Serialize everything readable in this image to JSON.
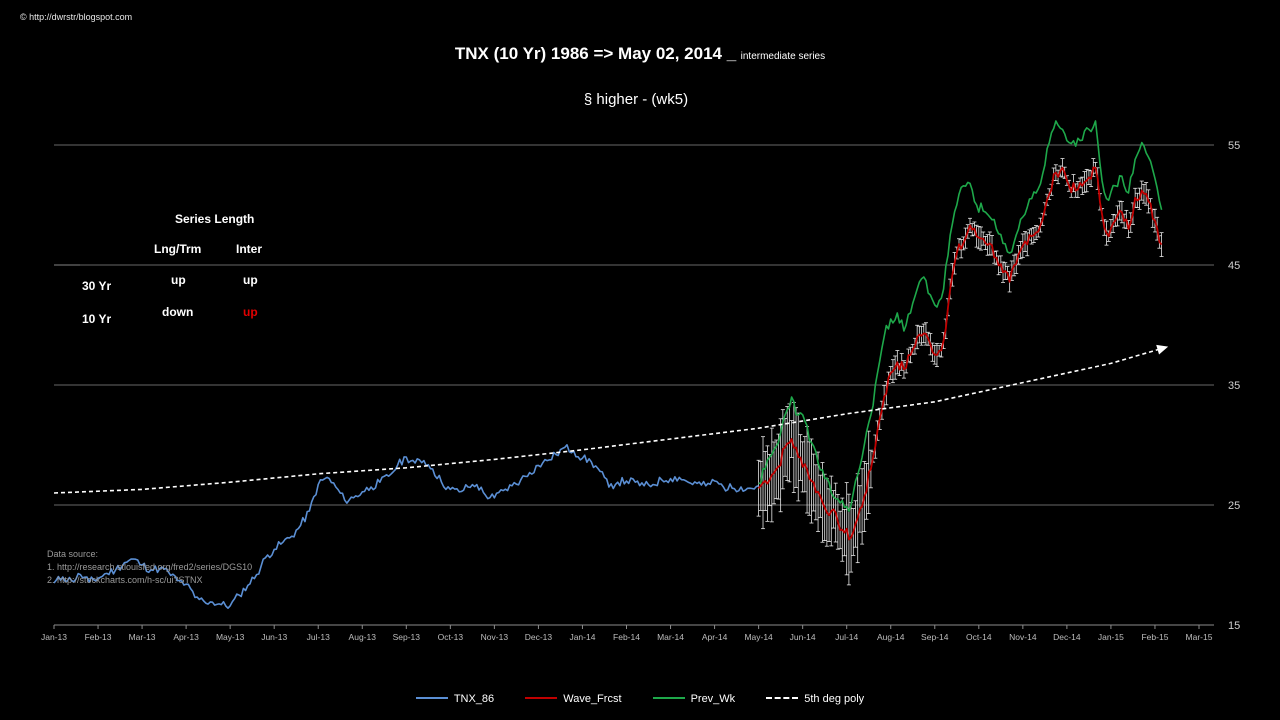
{
  "copyright": "© http://dwrstr/blogspot.com",
  "title": {
    "main": "TNX (10 Yr) 1986 => May 02, 2014 _",
    "suffix": "intermediate series",
    "subtitle": "§ higher -  (wk5)"
  },
  "series_length_table": {
    "header": "Series Length",
    "col_longterm": "Lng/Trm",
    "col_inter": "Inter",
    "rows": [
      {
        "label": "30 Yr",
        "longterm": "up",
        "inter": "up",
        "inter_color": "#ffffff"
      },
      {
        "label": "10 Yr",
        "longterm": "down",
        "inter": "up",
        "inter_color": "#e00000"
      }
    ]
  },
  "data_source": {
    "heading": "Data source:",
    "line1": "1. http://research.stlouisfed.org/fred2/series/DGS10",
    "line2": "2. http://stockcharts.com/h-sc/ui?STNX"
  },
  "legend": [
    {
      "name": "TNX_86",
      "color": "#5b8fd4",
      "style": "solid"
    },
    {
      "name": "Wave_Frcst",
      "color": "#c00000",
      "style": "solid"
    },
    {
      "name": "Prev_Wk",
      "color": "#1ea84a",
      "style": "solid"
    },
    {
      "name": "5th deg poly",
      "color": "#ffffff",
      "style": "dashed"
    }
  ],
  "colors": {
    "background": "#000000",
    "grid": "#8c8c8c",
    "tnx": "#5b8fd4",
    "wave": "#c00000",
    "prev": "#1ea84a",
    "poly": "#ffffff"
  },
  "chart_data": {
    "type": "line",
    "x_axis": {
      "ticks": [
        "Jan-13",
        "Feb-13",
        "Mar-13",
        "Apr-13",
        "May-13",
        "Jun-13",
        "Jul-13",
        "Aug-13",
        "Sep-13",
        "Oct-13",
        "Nov-13",
        "Dec-13",
        "Jan-14",
        "Feb-14",
        "Mar-14",
        "Apr-14",
        "May-14",
        "Jun-14",
        "Jul-14",
        "Aug-14",
        "Sep-14",
        "Oct-14",
        "Nov-14",
        "Dec-14",
        "Jan-15",
        "Feb-15",
        "Mar-15"
      ]
    },
    "y_axis": {
      "ticks": [
        15,
        25,
        35,
        45,
        55
      ],
      "range": [
        15,
        55
      ],
      "position": "right",
      "grid": true
    },
    "legend_position": "bottom",
    "series": [
      {
        "name": "TNX_86",
        "x_month": [
          0,
          0.2,
          0.4,
          0.6,
          0.8,
          1.0,
          1.2,
          1.4,
          1.6,
          1.8,
          2.0,
          2.2,
          2.4,
          2.6,
          2.8,
          3.0,
          3.2,
          3.4,
          3.6,
          3.8,
          4.0,
          4.2,
          4.4,
          4.6,
          4.8,
          5.0,
          5.2,
          5.4,
          5.6,
          5.8,
          6.0,
          6.2,
          6.4,
          6.6,
          6.8,
          7.0,
          7.2,
          7.4,
          7.6,
          7.8,
          8.0,
          8.2,
          8.4,
          8.6,
          8.8,
          9.0,
          9.2,
          9.4,
          9.6,
          9.8,
          10.0,
          10.2,
          10.4,
          10.6,
          10.8,
          11.0,
          11.2,
          11.4,
          11.6,
          11.8,
          12.0,
          12.2,
          12.4,
          12.6,
          12.8,
          13.0,
          13.2,
          13.4,
          13.6,
          13.8,
          14.0,
          14.2,
          14.4,
          14.6,
          14.8,
          15.0,
          15.2,
          15.4,
          15.6,
          15.8,
          16.0
        ],
        "values": [
          18.5,
          19.0,
          18.7,
          19.2,
          18.6,
          18.9,
          19.3,
          19.6,
          20.2,
          20.5,
          20.0,
          19.6,
          19.7,
          19.4,
          18.7,
          18.4,
          17.3,
          17.0,
          16.9,
          16.7,
          16.6,
          17.5,
          18.3,
          19.2,
          20.6,
          21.3,
          21.9,
          22.4,
          23.3,
          24.5,
          26.7,
          27.3,
          26.5,
          25.4,
          25.6,
          26.1,
          26.5,
          26.9,
          27.4,
          28.3,
          29.0,
          28.5,
          28.7,
          28.0,
          26.9,
          26.3,
          26.1,
          26.5,
          26.7,
          25.8,
          25.6,
          26.2,
          26.6,
          27.1,
          27.7,
          28.3,
          28.7,
          29.2,
          29.8,
          29.5,
          28.9,
          28.6,
          27.8,
          26.5,
          26.9,
          27.0,
          26.9,
          26.6,
          26.7,
          27.1,
          27.2,
          27.3,
          26.9,
          26.8,
          26.6,
          27.0,
          26.5,
          26.4,
          26.5,
          26.4,
          26.6
        ]
      },
      {
        "name": "Wave_Frcst",
        "x_month": [
          16.0,
          16.15,
          16.3,
          16.45,
          16.6,
          16.75,
          16.9,
          17.05,
          17.2,
          17.35,
          17.5,
          17.65,
          17.8,
          17.95,
          18.1,
          18.25,
          18.4,
          18.55,
          18.7,
          18.85,
          19.0,
          19.15,
          19.3,
          19.45,
          19.6,
          19.75,
          19.9,
          20.05,
          20.2,
          20.35,
          20.5,
          20.65,
          20.8,
          20.95,
          21.1,
          21.25,
          21.4,
          21.55,
          21.7,
          21.85,
          22.0,
          22.15,
          22.3,
          22.45,
          22.6,
          22.75,
          22.9,
          23.05,
          23.2,
          23.35,
          23.5,
          23.65,
          23.8,
          23.95,
          24.1,
          24.25,
          24.4,
          24.55,
          24.7,
          24.85,
          25.0,
          25.15
        ],
        "values": [
          26.4,
          27.0,
          27.5,
          28.2,
          29.8,
          30.5,
          29.0,
          28.4,
          27.0,
          26.1,
          24.8,
          24.5,
          23.6,
          22.7,
          22.3,
          23.9,
          25.7,
          28.0,
          31.2,
          34.0,
          36.0,
          36.9,
          36.3,
          37.5,
          39.0,
          39.3,
          38.4,
          37.5,
          38.7,
          43.0,
          46.0,
          46.8,
          48.3,
          47.4,
          47.2,
          46.8,
          45.6,
          44.4,
          43.6,
          45.1,
          46.6,
          47.5,
          47.7,
          48.8,
          50.9,
          52.7,
          53.1,
          51.6,
          51.2,
          51.6,
          52.3,
          53.1,
          49.2,
          47.4,
          48.7,
          49.4,
          48.0,
          50.6,
          51.2,
          50.3,
          48.7,
          46.7
        ]
      },
      {
        "name": "Prev_Wk",
        "x_month": [
          16.0,
          16.15,
          16.3,
          16.45,
          16.6,
          16.75,
          16.9,
          17.05,
          17.2,
          17.35,
          17.5,
          17.65,
          17.8,
          17.95,
          18.1,
          18.25,
          18.4,
          18.55,
          18.7,
          18.85,
          19.0,
          19.15,
          19.3,
          19.45,
          19.6,
          19.75,
          19.9,
          20.05,
          20.2,
          20.35,
          20.5,
          20.65,
          20.8,
          20.95,
          21.1,
          21.25,
          21.4,
          21.55,
          21.7,
          21.85,
          22.0,
          22.15,
          22.3,
          22.45,
          22.6,
          22.75,
          22.9,
          23.05,
          23.2,
          23.35,
          23.5,
          23.65,
          23.8,
          23.95,
          24.1,
          24.25,
          24.4,
          24.55,
          24.7,
          24.85,
          25.0,
          25.15
        ],
        "values": [
          26.8,
          28.0,
          29.2,
          30.2,
          32.5,
          34.0,
          32.5,
          32.0,
          30.2,
          28.5,
          27.2,
          26.0,
          25.5,
          24.8,
          25.0,
          27.5,
          30.0,
          32.5,
          36.0,
          39.0,
          40.5,
          41.0,
          39.5,
          41.0,
          43.0,
          44.0,
          42.5,
          41.5,
          43.0,
          47.5,
          50.0,
          51.6,
          51.8,
          50.0,
          49.5,
          49.0,
          48.0,
          46.8,
          46.0,
          47.5,
          49.0,
          50.5,
          51.0,
          52.6,
          55.2,
          57.0,
          56.3,
          55.2,
          54.9,
          55.4,
          56.3,
          57.0,
          52.0,
          50.4,
          51.6,
          52.4,
          51.0,
          53.8,
          55.2,
          54.0,
          52.2,
          49.6
        ]
      },
      {
        "name": "5th deg poly",
        "x_month": [
          0,
          2,
          4,
          6,
          8,
          10,
          12,
          14,
          16,
          18,
          20,
          22,
          24,
          25.3
        ],
        "values": [
          26.0,
          26.3,
          26.9,
          27.6,
          28.1,
          28.8,
          29.6,
          30.5,
          31.4,
          32.6,
          33.6,
          35.2,
          36.8,
          38.2
        ]
      }
    ]
  }
}
